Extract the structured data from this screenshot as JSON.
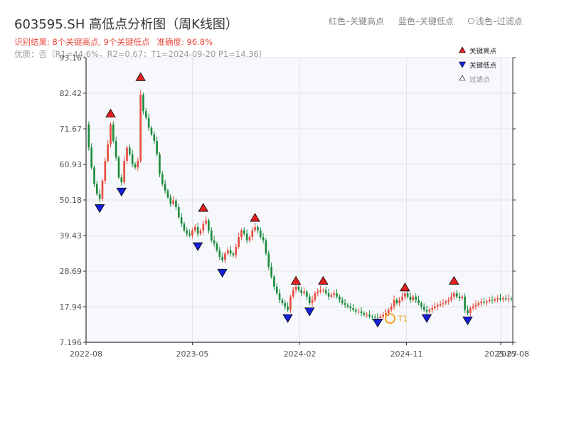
{
  "title": "603595.SH 高低点分析图（周K线图）",
  "top_legend": {
    "red": "红色–关键高点",
    "blue": "蓝色–关键低点",
    "light": "浅色–过滤点"
  },
  "subtitle": {
    "result": "识别结果: 8个关键高点, 9个关键低点",
    "accuracy": "准确度: 96.8%",
    "quality": "优质：否（R1=44.6%，R2=0.67；T1=2024-09-20 P1=14.36）"
  },
  "chart_legend": {
    "high": "关键高点",
    "low": "关键低点",
    "filtered": "过滤点"
  },
  "colors": {
    "up": "#e8483c",
    "down": "#1a8a3a",
    "high_marker": "#e02020",
    "low_marker": "#1520d8",
    "t1_marker": "#f0a020",
    "axis": "#333333",
    "grid": "#e4e4e4",
    "plot_bg": "#f6f8fb"
  },
  "chart_data": {
    "type": "candlestick",
    "ylim": [
      7.196,
      93.16
    ],
    "yticks": [
      7.196,
      17.94,
      28.69,
      39.43,
      50.18,
      60.93,
      71.67,
      82.42,
      93.16
    ],
    "ytick_labels": [
      "7.196",
      "17.94",
      "28.69",
      "39.43",
      "50.18",
      "60.93",
      "71.67",
      "82.42",
      "93.16"
    ],
    "xlim": [
      "2022-08-01",
      "2025-08-01"
    ],
    "xticks": [
      "2022-08",
      "2023-05",
      "2024-02",
      "2024-11",
      "2025-07",
      "2025-08"
    ],
    "close_path": [
      [
        "2022-08-01",
        73
      ],
      [
        "2022-08-08",
        66
      ],
      [
        "2022-08-15",
        60
      ],
      [
        "2022-08-22",
        55
      ],
      [
        "2022-08-29",
        52
      ],
      [
        "2022-09-05",
        50.5
      ],
      [
        "2022-09-12",
        56
      ],
      [
        "2022-09-19",
        62
      ],
      [
        "2022-09-26",
        67
      ],
      [
        "2022-10-03",
        73
      ],
      [
        "2022-10-10",
        68
      ],
      [
        "2022-10-17",
        63
      ],
      [
        "2022-10-24",
        57
      ],
      [
        "2022-10-31",
        55.5
      ],
      [
        "2022-11-07",
        62
      ],
      [
        "2022-11-14",
        66
      ],
      [
        "2022-11-21",
        64
      ],
      [
        "2022-11-28",
        61
      ],
      [
        "2022-12-05",
        60
      ],
      [
        "2022-12-12",
        62
      ],
      [
        "2022-12-19",
        82
      ],
      [
        "2022-12-26",
        77
      ],
      [
        "2023-01-02",
        75
      ],
      [
        "2023-01-09",
        72
      ],
      [
        "2023-01-16",
        70
      ],
      [
        "2023-01-23",
        68
      ],
      [
        "2023-01-30",
        64
      ],
      [
        "2023-02-06",
        58
      ],
      [
        "2023-02-13",
        55
      ],
      [
        "2023-02-20",
        53
      ],
      [
        "2023-02-27",
        51
      ],
      [
        "2023-03-06",
        49
      ],
      [
        "2023-03-13",
        50
      ],
      [
        "2023-03-20",
        48
      ],
      [
        "2023-03-27",
        45
      ],
      [
        "2023-04-03",
        43
      ],
      [
        "2023-04-10",
        41
      ],
      [
        "2023-04-17",
        40
      ],
      [
        "2023-04-24",
        39.5
      ],
      [
        "2023-05-01",
        41
      ],
      [
        "2023-05-08",
        42
      ],
      [
        "2023-05-15",
        40
      ],
      [
        "2023-05-22",
        41
      ],
      [
        "2023-05-29",
        43
      ],
      [
        "2023-06-05",
        44
      ],
      [
        "2023-06-12",
        41
      ],
      [
        "2023-06-19",
        38
      ],
      [
        "2023-06-26",
        37
      ],
      [
        "2023-07-03",
        35
      ],
      [
        "2023-07-10",
        33
      ],
      [
        "2023-07-17",
        32
      ],
      [
        "2023-07-24",
        34
      ],
      [
        "2023-07-31",
        35
      ],
      [
        "2023-08-07",
        34
      ],
      [
        "2023-08-14",
        33.5
      ],
      [
        "2023-08-21",
        36
      ],
      [
        "2023-08-28",
        39
      ],
      [
        "2023-09-04",
        41
      ],
      [
        "2023-09-11",
        40
      ],
      [
        "2023-09-18",
        38
      ],
      [
        "2023-09-25",
        39
      ],
      [
        "2023-10-02",
        41
      ],
      [
        "2023-10-09",
        42
      ],
      [
        "2023-10-16",
        41
      ],
      [
        "2023-10-23",
        39
      ],
      [
        "2023-10-30",
        38
      ],
      [
        "2023-11-06",
        34
      ],
      [
        "2023-11-13",
        30
      ],
      [
        "2023-11-20",
        27
      ],
      [
        "2023-11-27",
        24
      ],
      [
        "2023-12-04",
        22
      ],
      [
        "2023-12-11",
        20
      ],
      [
        "2023-12-18",
        19
      ],
      [
        "2023-12-25",
        18
      ],
      [
        "2024-01-01",
        17
      ],
      [
        "2024-01-08",
        21
      ],
      [
        "2024-01-15",
        23
      ],
      [
        "2024-01-22",
        24
      ],
      [
        "2024-01-29",
        23
      ],
      [
        "2024-02-05",
        22
      ],
      [
        "2024-02-12",
        22.5
      ],
      [
        "2024-02-19",
        21
      ],
      [
        "2024-02-26",
        19
      ],
      [
        "2024-03-04",
        20
      ],
      [
        "2024-03-11",
        22
      ],
      [
        "2024-03-18",
        22.5
      ],
      [
        "2024-03-25",
        23
      ],
      [
        "2024-04-01",
        23
      ],
      [
        "2024-04-08",
        22
      ],
      [
        "2024-04-15",
        21
      ],
      [
        "2024-04-22",
        21.5
      ],
      [
        "2024-04-29",
        22
      ],
      [
        "2024-05-06",
        21
      ],
      [
        "2024-05-13",
        20
      ],
      [
        "2024-05-20",
        19
      ],
      [
        "2024-05-27",
        18.5
      ],
      [
        "2024-06-03",
        18
      ],
      [
        "2024-06-10",
        17.5
      ],
      [
        "2024-06-17",
        17
      ],
      [
        "2024-06-24",
        16.5
      ],
      [
        "2024-07-01",
        16.5
      ],
      [
        "2024-07-08",
        16
      ],
      [
        "2024-07-15",
        15.5
      ],
      [
        "2024-07-22",
        15.5
      ],
      [
        "2024-07-29",
        15
      ],
      [
        "2024-08-05",
        14.8
      ],
      [
        "2024-08-12",
        14.6
      ],
      [
        "2024-08-19",
        14.5
      ],
      [
        "2024-08-26",
        15
      ],
      [
        "2024-09-02",
        15.5
      ],
      [
        "2024-09-09",
        16
      ],
      [
        "2024-09-16",
        17
      ],
      [
        "2024-09-23",
        18
      ],
      [
        "2024-09-30",
        20
      ],
      [
        "2024-10-07",
        19
      ],
      [
        "2024-10-14",
        20
      ],
      [
        "2024-10-21",
        21
      ],
      [
        "2024-10-28",
        22
      ],
      [
        "2024-11-04",
        21
      ],
      [
        "2024-11-11",
        20
      ],
      [
        "2024-11-18",
        21
      ],
      [
        "2024-11-25",
        20
      ],
      [
        "2024-12-02",
        19
      ],
      [
        "2024-12-09",
        18
      ],
      [
        "2024-12-16",
        17
      ],
      [
        "2024-12-23",
        16.5
      ],
      [
        "2024-12-30",
        17
      ],
      [
        "2025-01-06",
        17.5
      ],
      [
        "2025-01-13",
        18
      ],
      [
        "2025-01-20",
        18.5
      ],
      [
        "2025-01-27",
        18.8
      ],
      [
        "2025-02-03",
        19
      ],
      [
        "2025-02-10",
        19.5
      ],
      [
        "2025-02-17",
        20
      ],
      [
        "2025-02-24",
        21
      ],
      [
        "2025-03-03",
        22
      ],
      [
        "2025-03-10",
        21
      ],
      [
        "2025-03-17",
        20.5
      ],
      [
        "2025-03-24",
        21
      ],
      [
        "2025-03-31",
        17
      ],
      [
        "2025-04-07",
        16
      ],
      [
        "2025-04-14",
        17.5
      ],
      [
        "2025-04-21",
        18
      ],
      [
        "2025-04-28",
        18.5
      ],
      [
        "2025-05-05",
        19
      ],
      [
        "2025-05-12",
        19.5
      ],
      [
        "2025-05-19",
        19.2
      ],
      [
        "2025-05-26",
        19.6
      ],
      [
        "2025-06-02",
        20
      ],
      [
        "2025-06-09",
        19.8
      ],
      [
        "2025-06-16",
        20.2
      ],
      [
        "2025-06-23",
        20.5
      ],
      [
        "2025-06-30",
        20.2
      ],
      [
        "2025-07-07",
        20.5
      ],
      [
        "2025-07-14",
        20.3
      ],
      [
        "2025-07-21",
        20.4
      ],
      [
        "2025-07-28",
        20.2
      ]
    ],
    "key_highs": [
      [
        "2022-10-03",
        75
      ],
      [
        "2022-12-19",
        86
      ],
      [
        "2023-05-29",
        46.5
      ],
      [
        "2023-10-09",
        43.5
      ],
      [
        "2024-01-22",
        24.5
      ],
      [
        "2024-04-01",
        24.5
      ],
      [
        "2024-10-28",
        22.5
      ],
      [
        "2025-03-03",
        24.5
      ]
    ],
    "key_lows": [
      [
        "2022-09-05",
        49
      ],
      [
        "2022-10-31",
        54
      ],
      [
        "2023-05-15",
        37.5
      ],
      [
        "2023-07-17",
        29.5
      ],
      [
        "2024-01-01",
        15.8
      ],
      [
        "2024-02-26",
        17.8
      ],
      [
        "2024-08-19",
        14.4
      ],
      [
        "2024-12-23",
        15.8
      ],
      [
        "2025-04-07",
        15.1
      ]
    ],
    "t1_point": {
      "label": "T1",
      "date": "2024-09-20",
      "value": 14.36
    }
  }
}
